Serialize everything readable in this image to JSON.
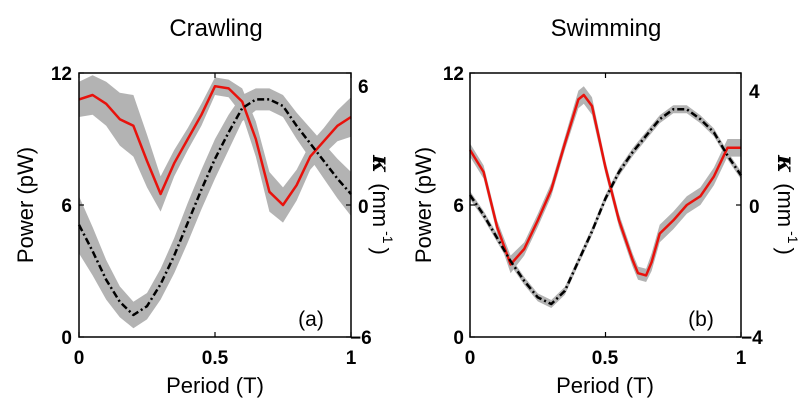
{
  "chart_data": [
    {
      "type": "line",
      "title": "Crawling",
      "xlabel": "Period (T)",
      "ylabel_left": "Power (pW)",
      "ylabel_right": {
        "symbol": "κ",
        "unit": "(mm",
        "exponent": "-1",
        "close": ")"
      },
      "panel_label": "(a)",
      "xlim": [
        0,
        1
      ],
      "ylim_left": [
        0,
        12
      ],
      "ylim_right": [
        -6,
        6
      ],
      "xticks": [
        0,
        0.5,
        1
      ],
      "xtick_labels": [
        "0",
        "0.5",
        "1"
      ],
      "yticks_left": [
        0,
        6,
        12
      ],
      "ytick_labels_left": [
        "0",
        "6",
        "12"
      ],
      "yticks_right": [
        -6,
        0,
        6
      ],
      "ytick_labels_right": [
        "−6",
        "0",
        "6"
      ],
      "series": [
        {
          "axis": "left",
          "color": "#e8120c",
          "style": "solid",
          "x": [
            0,
            0.05,
            0.1,
            0.15,
            0.2,
            0.25,
            0.3,
            0.35,
            0.4,
            0.45,
            0.5,
            0.55,
            0.6,
            0.65,
            0.7,
            0.75,
            0.8,
            0.85,
            0.9,
            0.95,
            1.0
          ],
          "y": [
            10.8,
            11.0,
            10.6,
            9.9,
            9.6,
            8.0,
            6.5,
            7.9,
            9.0,
            10.1,
            11.4,
            11.3,
            10.7,
            9.0,
            6.6,
            6.0,
            6.9,
            8.2,
            8.9,
            9.6,
            10.0
          ],
          "band": [
            0.8,
            0.9,
            1.0,
            1.2,
            1.4,
            1.2,
            0.8,
            0.6,
            0.5,
            0.5,
            0.4,
            0.4,
            0.6,
            0.8,
            0.9,
            0.8,
            0.7,
            0.6,
            0.6,
            0.7,
            0.9
          ]
        },
        {
          "axis": "right",
          "color": "#000000",
          "style": "dashdot",
          "x": [
            0,
            0.05,
            0.1,
            0.15,
            0.2,
            0.25,
            0.3,
            0.35,
            0.4,
            0.45,
            0.5,
            0.55,
            0.6,
            0.65,
            0.7,
            0.75,
            0.8,
            0.85,
            0.9,
            0.95,
            1.0
          ],
          "y": [
            -0.9,
            -2.1,
            -3.4,
            -4.4,
            -5.0,
            -4.6,
            -3.6,
            -2.3,
            -0.8,
            0.7,
            2.1,
            3.3,
            4.4,
            4.8,
            4.8,
            4.5,
            3.6,
            2.8,
            2.0,
            1.2,
            0.5
          ],
          "band": [
            1.3,
            1.1,
            0.9,
            0.7,
            0.6,
            0.6,
            0.7,
            0.8,
            0.9,
            0.9,
            0.9,
            0.8,
            0.6,
            0.5,
            0.5,
            0.5,
            0.6,
            0.7,
            0.8,
            0.9,
            1.0
          ]
        }
      ]
    },
    {
      "type": "line",
      "title": "Swimming",
      "xlabel": "Period (T)",
      "ylabel_left": "Power (pW)",
      "ylabel_right": {
        "symbol": "κ",
        "unit": "(mm",
        "exponent": "-1",
        "close": ")"
      },
      "panel_label": "(b)",
      "xlim": [
        0,
        1
      ],
      "ylim_left": [
        0,
        12
      ],
      "ylim_right": [
        -4,
        4
      ],
      "xticks": [
        0,
        0.5,
        1
      ],
      "xtick_labels": [
        "0",
        "0.5",
        "1"
      ],
      "yticks_left": [
        0,
        6,
        12
      ],
      "ytick_labels_left": [
        "0",
        "6",
        "12"
      ],
      "yticks_right": [
        -4,
        0,
        4
      ],
      "ytick_labels_right": [
        "−4",
        "0",
        "4"
      ],
      "series": [
        {
          "axis": "left",
          "color": "#e8120c",
          "style": "solid",
          "x": [
            0,
            0.05,
            0.1,
            0.15,
            0.2,
            0.25,
            0.3,
            0.35,
            0.4,
            0.42,
            0.45,
            0.5,
            0.55,
            0.6,
            0.62,
            0.65,
            0.67,
            0.7,
            0.75,
            0.8,
            0.85,
            0.9,
            0.95,
            1.0
          ],
          "y": [
            8.5,
            7.5,
            5.0,
            3.3,
            4.0,
            5.3,
            6.7,
            8.8,
            10.8,
            11.0,
            10.5,
            7.7,
            5.3,
            3.5,
            2.9,
            2.8,
            3.4,
            4.7,
            5.3,
            6.0,
            6.4,
            7.3,
            8.6,
            8.6
          ],
          "band": [
            0.3,
            0.3,
            0.3,
            0.4,
            0.3,
            0.3,
            0.3,
            0.3,
            0.4,
            0.4,
            0.4,
            0.3,
            0.3,
            0.3,
            0.3,
            0.3,
            0.4,
            0.4,
            0.4,
            0.4,
            0.4,
            0.4,
            0.4,
            0.4
          ]
        },
        {
          "axis": "right",
          "color": "#000000",
          "style": "dashdot",
          "x": [
            0,
            0.05,
            0.1,
            0.15,
            0.2,
            0.25,
            0.3,
            0.35,
            0.4,
            0.45,
            0.5,
            0.55,
            0.6,
            0.65,
            0.7,
            0.75,
            0.8,
            0.85,
            0.9,
            0.95,
            1.0
          ],
          "y": [
            0.3,
            -0.3,
            -1.0,
            -1.7,
            -2.3,
            -2.8,
            -3.0,
            -2.6,
            -1.7,
            -0.8,
            0.2,
            1.0,
            1.6,
            2.1,
            2.6,
            2.9,
            2.9,
            2.6,
            2.2,
            1.5,
            0.9
          ],
          "band": [
            0.12,
            0.12,
            0.12,
            0.12,
            0.12,
            0.12,
            0.12,
            0.12,
            0.12,
            0.12,
            0.12,
            0.12,
            0.12,
            0.12,
            0.12,
            0.12,
            0.12,
            0.12,
            0.12,
            0.12,
            0.12
          ]
        }
      ]
    }
  ]
}
